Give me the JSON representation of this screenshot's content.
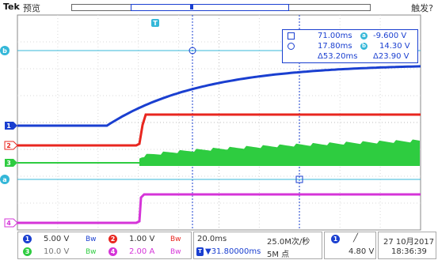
{
  "header": {
    "brand": "Tek",
    "mode": "预览",
    "trigger_state": "触发?"
  },
  "markers": {
    "trigger_marker": "T",
    "cursor_a": "a",
    "cursor_b": "b"
  },
  "channels": [
    {
      "id": "1",
      "color": "#1a3fd0"
    },
    {
      "id": "2",
      "color": "#e8261f"
    },
    {
      "id": "3",
      "color": "#2ecc40"
    },
    {
      "id": "4",
      "color": "#d534d8"
    }
  ],
  "cursor_readout": {
    "time_a": "71.00ms",
    "time_b": "17.80ms",
    "time_delta": "Δ53.20ms",
    "volt_a": "-9.600 V",
    "volt_b": "14.30 V",
    "volt_delta": "Δ23.90 V",
    "label_a": "a",
    "label_b": "b"
  },
  "status": {
    "ch1_scale": "5.00 V",
    "ch2_scale": "1.00 V",
    "ch3_scale": "10.0 V",
    "ch4_scale": "2.00 A",
    "bw_symbol": "Bw",
    "time_per_div": "20.0ms",
    "sample_rate": "25.0M次/秒",
    "horiz_position": "▼31.80000ms",
    "record_length": "5M 点",
    "trigger_source": "1",
    "trigger_slope": "╱",
    "trigger_level": "4.80 V",
    "date": "27 10月2017",
    "time": "18:36:39"
  }
}
